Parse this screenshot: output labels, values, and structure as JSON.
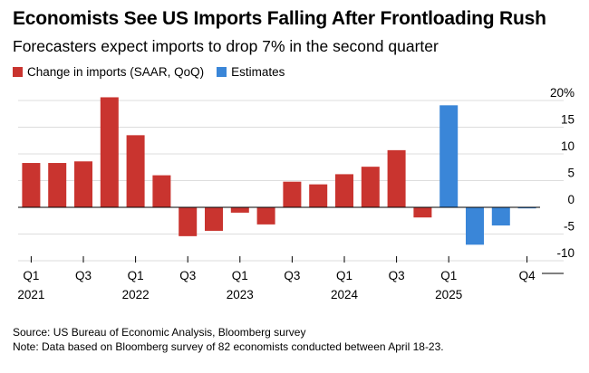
{
  "title": "Economists See US Imports Falling After Frontloading Rush",
  "subtitle": "Forecasters expect imports to drop 7% in the second quarter",
  "source": "Source: US Bureau of Economic Analysis, Bloomberg survey",
  "note": "Note: Data based on Bloomberg survey of 82 economists conducted between April 18-23.",
  "colors": {
    "actual": "#c9342f",
    "estimate": "#3a86d8",
    "grid": "#dddddd",
    "zero": "#000000"
  },
  "chart_data": {
    "type": "bar",
    "legend": [
      {
        "name": "Change in imports (SAAR, QoQ)",
        "color": "#c9342f"
      },
      {
        "name": "Estimates",
        "color": "#3a86d8"
      }
    ],
    "categories": [
      "Q1 2021",
      "Q2 2021",
      "Q3 2021",
      "Q4 2021",
      "Q1 2022",
      "Q2 2022",
      "Q3 2022",
      "Q4 2022",
      "Q1 2023",
      "Q2 2023",
      "Q3 2023",
      "Q4 2023",
      "Q1 2024",
      "Q2 2024",
      "Q3 2024",
      "Q4 2024",
      "Q1 2025",
      "Q2 2025",
      "Q3 2025",
      "Q4 2025"
    ],
    "series": [
      {
        "name": "Change in imports (SAAR, QoQ)",
        "color": "#c9342f",
        "values": [
          8.3,
          8.3,
          8.6,
          20.6,
          13.5,
          6.0,
          -5.4,
          -4.4,
          -1.0,
          -3.2,
          4.8,
          4.3,
          6.2,
          7.6,
          10.7,
          -1.9,
          null,
          null,
          null,
          null
        ]
      },
      {
        "name": "Estimates",
        "color": "#3a86d8",
        "values": [
          null,
          null,
          null,
          null,
          null,
          null,
          null,
          null,
          null,
          null,
          null,
          null,
          null,
          null,
          null,
          null,
          19.1,
          -7.0,
          -3.4,
          -0.2
        ]
      }
    ],
    "x_tick_labels": [
      {
        "index": 0,
        "line1": "Q1",
        "line2": "2021"
      },
      {
        "index": 2,
        "line1": "Q3",
        "line2": ""
      },
      {
        "index": 4,
        "line1": "Q1",
        "line2": "2022"
      },
      {
        "index": 6,
        "line1": "Q3",
        "line2": ""
      },
      {
        "index": 8,
        "line1": "Q1",
        "line2": "2023"
      },
      {
        "index": 10,
        "line1": "Q3",
        "line2": ""
      },
      {
        "index": 12,
        "line1": "Q1",
        "line2": "2024"
      },
      {
        "index": 14,
        "line1": "Q3",
        "line2": ""
      },
      {
        "index": 16,
        "line1": "Q1",
        "line2": "2025"
      },
      {
        "index": 19,
        "line1": "Q4",
        "line2": ""
      }
    ],
    "y_ticks": [
      {
        "value": 20,
        "label": "20%"
      },
      {
        "value": 15,
        "label": "15"
      },
      {
        "value": 10,
        "label": "10"
      },
      {
        "value": 5,
        "label": "5"
      },
      {
        "value": 0,
        "label": "0"
      },
      {
        "value": -5,
        "label": "-5"
      },
      {
        "value": -10,
        "label": "-10"
      }
    ],
    "ylim": [
      -12,
      22
    ],
    "y_axis_position": "right",
    "grid": true
  }
}
